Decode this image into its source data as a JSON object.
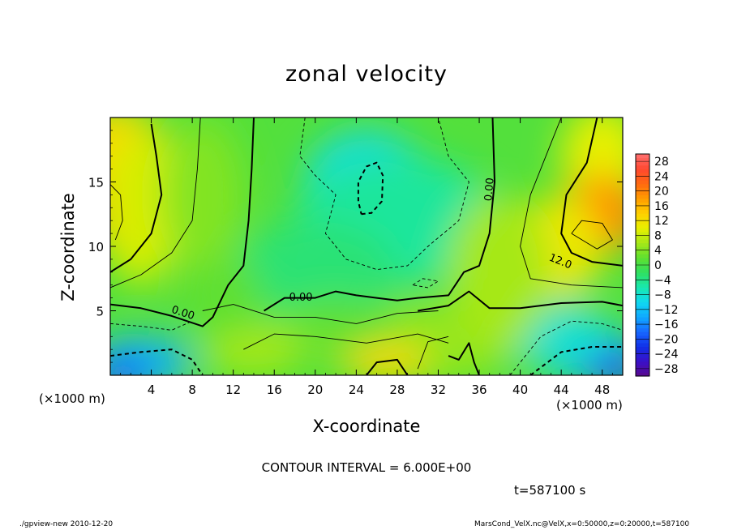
{
  "chart_data": {
    "type": "heatmap",
    "title": "zonal velocity",
    "xlabel": "X-coordinate",
    "ylabel": "Z-coordinate",
    "x_unit_label": "(×1000 m)",
    "y_unit_label": "(×1000 m)",
    "xlim": [
      0,
      50
    ],
    "ylim": [
      0,
      20
    ],
    "x_ticks": [
      4,
      8,
      12,
      16,
      20,
      24,
      28,
      32,
      36,
      40,
      44,
      48
    ],
    "y_ticks": [
      5,
      10,
      15
    ],
    "colorbar": {
      "levels": [
        28,
        24,
        20,
        16,
        12,
        8,
        4,
        0,
        -4,
        -8,
        -12,
        -16,
        -20,
        -24,
        -28
      ],
      "min": -30,
      "max": 30
    },
    "contour_labels": [
      {
        "text": "0.00",
        "x": 7,
        "z": 4.6,
        "angle": 18
      },
      {
        "text": "0.00",
        "x": 18.6,
        "z": 5.8,
        "angle": 0
      },
      {
        "text": "0.00",
        "x": 37.3,
        "z": 14.4,
        "angle": -85
      },
      {
        "text": "12.0",
        "x": 43.8,
        "z": 8.6,
        "angle": 22
      }
    ],
    "contour_interval_text": "CONTOUR INTERVAL = 6.000E+00",
    "time_text": "t=587100 s"
  },
  "footer": {
    "left": "./gpview-new  2010-12-20",
    "right": "MarsCond_VelX.nc@VelX,x=0:50000,z=0:20000,t=587100"
  }
}
